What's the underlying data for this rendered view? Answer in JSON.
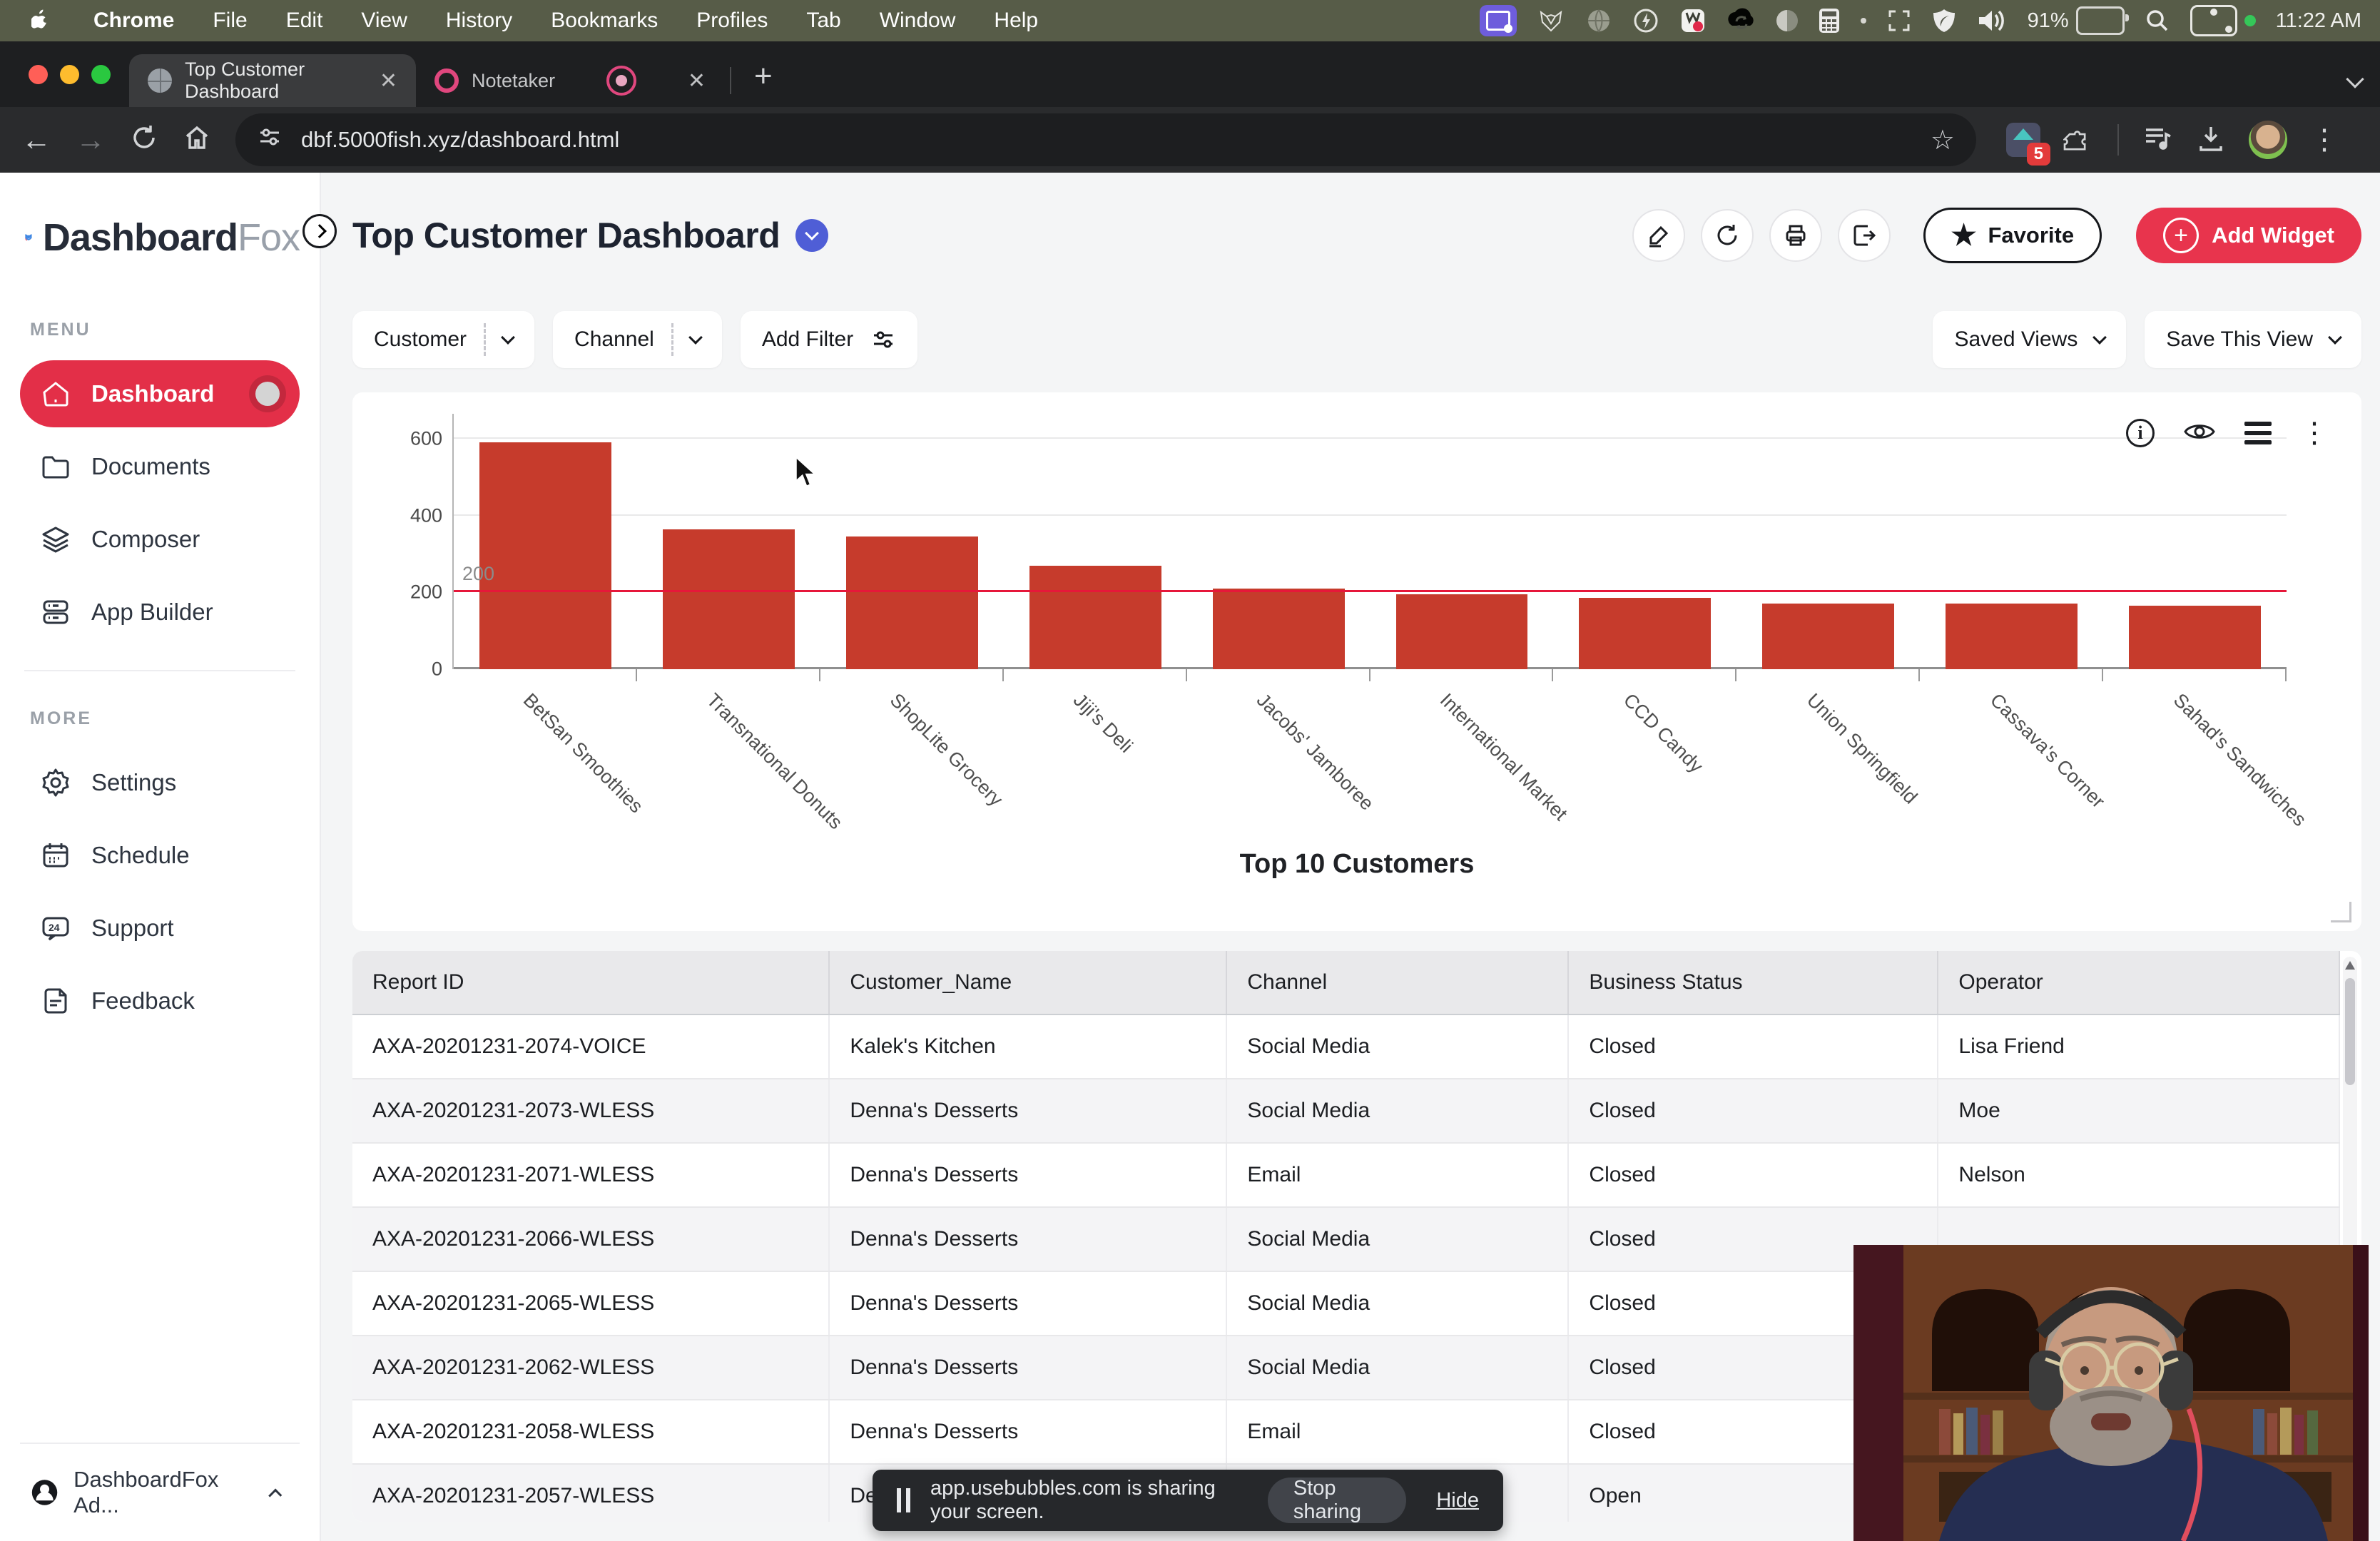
{
  "menubar": {
    "items": [
      "Chrome",
      "File",
      "Edit",
      "View",
      "History",
      "Bookmarks",
      "Profiles",
      "Tab",
      "Window",
      "Help"
    ],
    "status": {
      "battery_percent": "91%",
      "time": "11:22 AM"
    }
  },
  "browser": {
    "tabs": [
      {
        "title": "Top Customer Dashboard",
        "active": true
      },
      {
        "title": "Notetaker",
        "active": false
      }
    ],
    "url": "dbf.5000fish.xyz/dashboard.html",
    "extension_badge": "5"
  },
  "sidebar": {
    "logo_primary": "Dashboard",
    "logo_secondary": "Fox",
    "menu_label": "MENU",
    "more_label": "MORE",
    "menu": [
      {
        "label": "Dashboard",
        "active": true
      },
      {
        "label": "Documents",
        "active": false
      },
      {
        "label": "Composer",
        "active": false
      },
      {
        "label": "App Builder",
        "active": false
      }
    ],
    "more": [
      {
        "label": "Settings"
      },
      {
        "label": "Schedule"
      },
      {
        "label": "Support"
      },
      {
        "label": "Feedback"
      }
    ],
    "support_badge": "24",
    "user": "DashboardFox Ad..."
  },
  "header": {
    "title": "Top Customer Dashboard",
    "favorite_label": "Favorite",
    "add_widget_label": "Add Widget"
  },
  "filters": {
    "customer_label": "Customer",
    "channel_label": "Channel",
    "add_filter_label": "Add Filter",
    "saved_views_label": "Saved Views",
    "save_this_view_label": "Save This View"
  },
  "chart_data": {
    "type": "bar",
    "title": "Top 10 Customers",
    "categories": [
      "BetSan Smoothies",
      "Transnational Donuts",
      "ShopLite Grocery",
      "Jiji's Deli",
      "Jacobs' Jamboree",
      "International Market",
      "CCD Candy",
      "Union Springfield",
      "Cassava's Corner",
      "Sahad's Sandwiches"
    ],
    "values": [
      590,
      365,
      345,
      270,
      210,
      195,
      185,
      170,
      170,
      165
    ],
    "xlabel": "",
    "ylabel": "",
    "ylim": [
      0,
      665
    ],
    "yticks": [
      0,
      200,
      400,
      600
    ],
    "grid": true,
    "xlabel_rotation": 45,
    "bar_color": "#c63b2c",
    "ref_line": {
      "value": 200,
      "label": "200",
      "color": "#e6173a"
    }
  },
  "table": {
    "columns": [
      "Report ID",
      "Customer_Name",
      "Channel",
      "Business Status",
      "Operator"
    ],
    "col_widths_pct": [
      24,
      20,
      17.2,
      18.6,
      20.2
    ],
    "rows": [
      [
        "AXA-20201231-2074-VOICE",
        "Kalek's Kitchen",
        "Social Media",
        "Closed",
        "Lisa Friend"
      ],
      [
        "AXA-20201231-2073-WLESS",
        "Denna's Desserts",
        "Social Media",
        "Closed",
        "Moe"
      ],
      [
        "AXA-20201231-2071-WLESS",
        "Denna's Desserts",
        "Email",
        "Closed",
        "Nelson"
      ],
      [
        "AXA-20201231-2066-WLESS",
        "Denna's Desserts",
        "Social Media",
        "Closed",
        ""
      ],
      [
        "AXA-20201231-2065-WLESS",
        "Denna's Desserts",
        "Social Media",
        "Closed",
        ""
      ],
      [
        "AXA-20201231-2062-WLESS",
        "Denna's Desserts",
        "Social Media",
        "Closed",
        ""
      ],
      [
        "AXA-20201231-2058-WLESS",
        "Denna's Desserts",
        "Email",
        "Closed",
        ""
      ],
      [
        "AXA-20201231-2057-WLESS",
        "Denna's Desserts",
        "",
        "Open",
        ""
      ]
    ]
  },
  "share_banner": {
    "text": "app.usebubbles.com is sharing your screen.",
    "stop_label": "Stop sharing",
    "hide_label": "Hide"
  },
  "colors": {
    "brand_red": "#e32f48",
    "add_widget_red": "#e8344d",
    "bar_red": "#c63b2c",
    "ref_line_red": "#e6173a",
    "title_badge_blue": "#4f5ed6",
    "logo_blue": "#3f87e3"
  }
}
